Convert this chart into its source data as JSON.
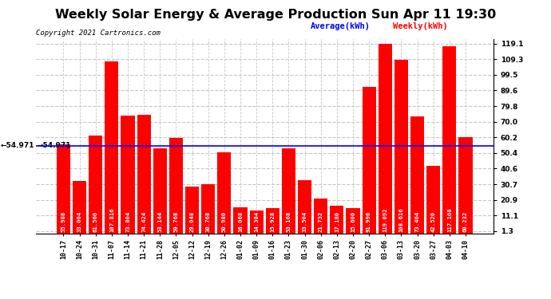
{
  "title": "Weekly Solar Energy & Average Production Sun Apr 11 19:30",
  "copyright": "Copyright 2021 Cartronics.com",
  "categories": [
    "10-17",
    "10-24",
    "10-31",
    "11-07",
    "11-14",
    "11-21",
    "11-28",
    "12-05",
    "12-12",
    "12-19",
    "12-26",
    "01-02",
    "01-09",
    "01-16",
    "01-23",
    "01-30",
    "02-06",
    "02-13",
    "02-20",
    "02-27",
    "03-06",
    "03-13",
    "03-20",
    "03-27",
    "04-03",
    "04-10"
  ],
  "values": [
    55.988,
    33.004,
    61.56,
    107.816,
    73.804,
    74.424,
    53.144,
    59.768,
    29.048,
    30.768,
    50.98,
    16.068,
    14.384,
    15.928,
    53.168,
    33.504,
    21.732,
    17.18,
    15.6,
    91.996,
    119.092,
    108.616,
    73.464,
    42.52,
    117.168,
    60.232
  ],
  "average": 54.971,
  "bar_color": "#ff0000",
  "average_line_color": "#0000ff",
  "yticks": [
    1.3,
    11.1,
    20.9,
    30.7,
    40.6,
    50.4,
    60.2,
    70.0,
    79.8,
    89.6,
    99.5,
    109.3,
    119.1
  ],
  "ylim": [
    0,
    122
  ],
  "background_color": "#ffffff",
  "grid_color": "#c8c8c8",
  "label_color_avg": "#0000ff",
  "label_color_weekly": "#ff0000",
  "legend_avg": "Average(kWh)",
  "legend_weekly": "Weekly(kWh)",
  "average_label": "54.971",
  "title_fontsize": 11.5,
  "copyright_fontsize": 6.5,
  "tick_label_fontsize": 6.0,
  "value_label_fontsize": 5.2,
  "legend_fontsize": 7.5
}
